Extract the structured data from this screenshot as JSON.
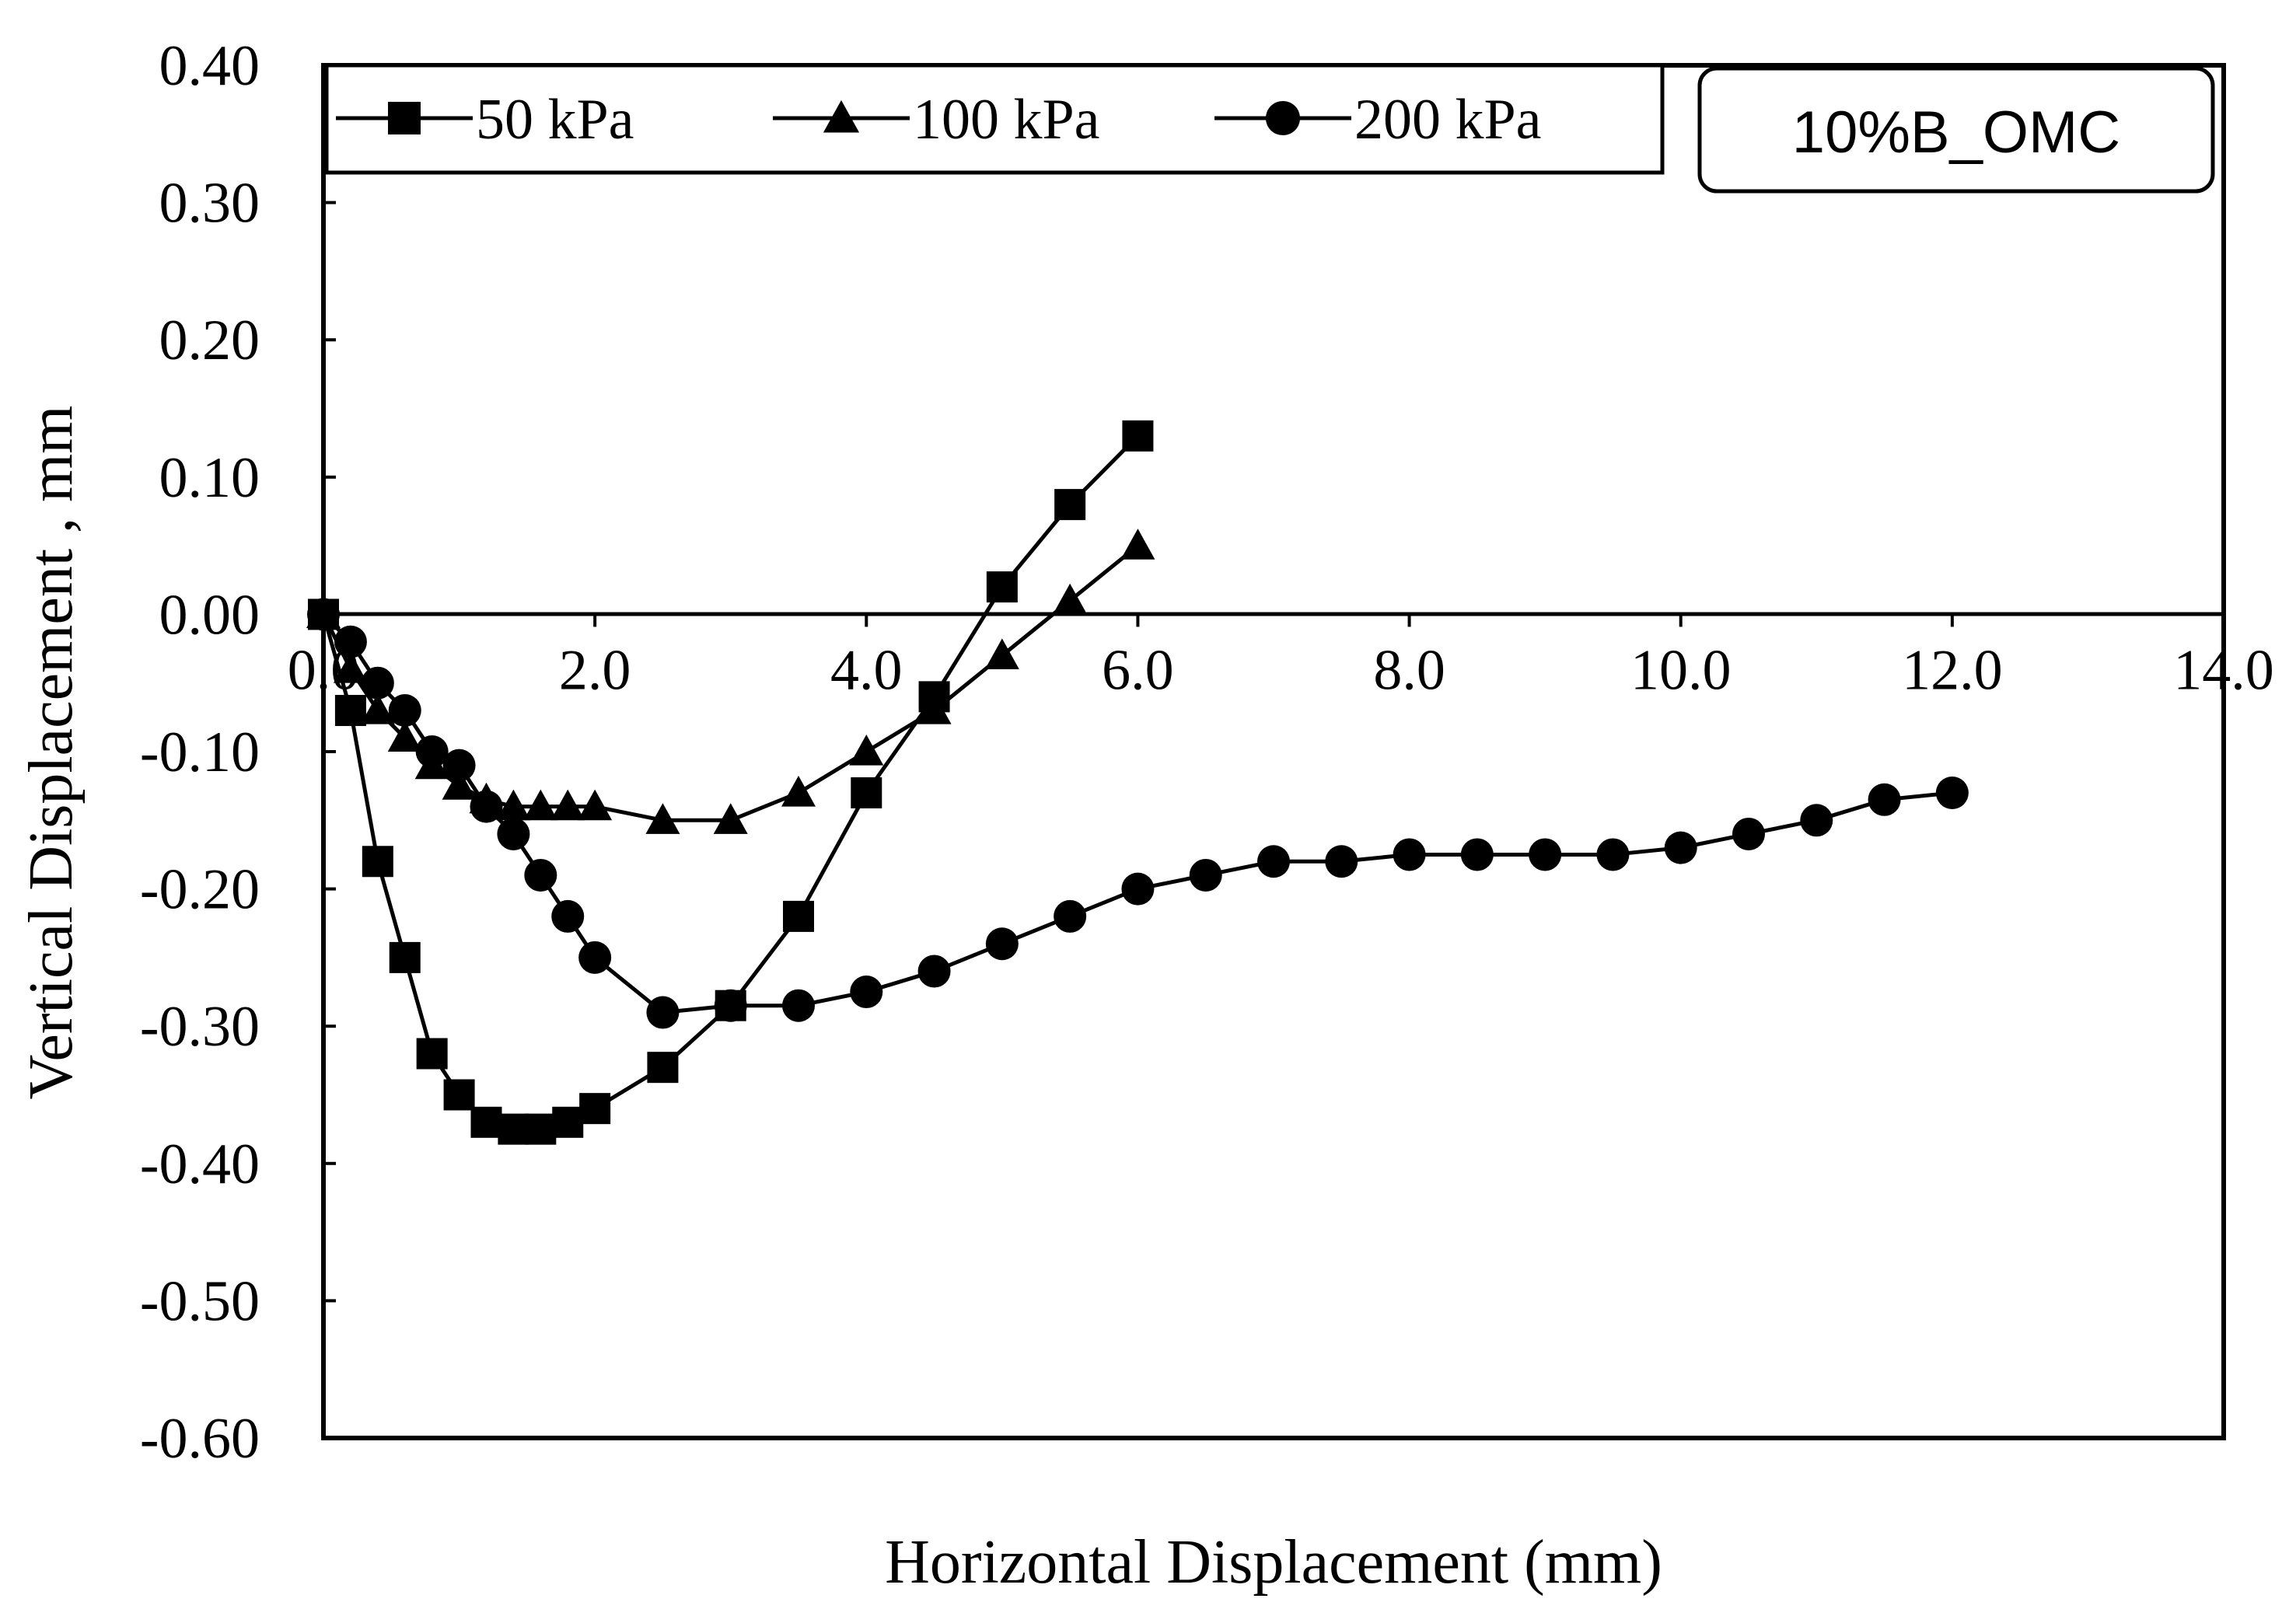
{
  "chart_data": {
    "type": "line",
    "title": "",
    "xlabel": "Horizontal Displacement (mm)",
    "ylabel": "Vertical Displacement , mm",
    "xlim": [
      0,
      14
    ],
    "ylim": [
      -0.6,
      0.4
    ],
    "x_ticks": [
      0,
      2,
      4,
      6,
      8,
      10,
      12,
      14
    ],
    "x_tick_labels": [
      "0.0",
      "2.0",
      "4.0",
      "6.0",
      "8.0",
      "10.0",
      "12.0",
      "14.0"
    ],
    "y_ticks": [
      0.4,
      0.3,
      0.2,
      0.1,
      0.0,
      -0.1,
      -0.2,
      -0.3,
      -0.4,
      -0.5,
      -0.6
    ],
    "y_tick_labels": [
      "0.40",
      "0.30",
      "0.20",
      "0.10",
      "0.00",
      "-0.10",
      "-0.20",
      "-0.30",
      "-0.40",
      "-0.50",
      "-0.60"
    ],
    "grid": false,
    "legend_position": "top",
    "annotation": "10%B_OMC",
    "series": [
      {
        "name": "50 kPa",
        "marker": "square",
        "x": [
          0,
          0.2,
          0.4,
          0.6,
          0.8,
          1.0,
          1.2,
          1.4,
          1.6,
          1.8,
          2.0,
          2.5,
          3.0,
          3.5,
          4.0,
          4.5,
          5.0,
          5.5,
          6.0
        ],
        "y": [
          0.0,
          -0.07,
          -0.18,
          -0.25,
          -0.32,
          -0.35,
          -0.37,
          -0.375,
          -0.375,
          -0.37,
          -0.36,
          -0.33,
          -0.285,
          -0.22,
          -0.13,
          -0.06,
          0.02,
          0.08,
          0.13
        ]
      },
      {
        "name": "100 kPa",
        "marker": "triangle",
        "x": [
          0,
          0.2,
          0.4,
          0.6,
          0.8,
          1.0,
          1.2,
          1.4,
          1.6,
          1.8,
          2.0,
          2.5,
          3.0,
          3.5,
          4.0,
          4.5,
          5.0,
          5.5,
          6.0
        ],
        "y": [
          0.0,
          -0.04,
          -0.07,
          -0.09,
          -0.11,
          -0.125,
          -0.135,
          -0.14,
          -0.14,
          -0.14,
          -0.14,
          -0.15,
          -0.15,
          -0.13,
          -0.1,
          -0.07,
          -0.03,
          0.01,
          0.05
        ]
      },
      {
        "name": "200 kPa",
        "marker": "circle",
        "x": [
          0,
          0.2,
          0.4,
          0.6,
          0.8,
          1.0,
          1.2,
          1.4,
          1.6,
          1.8,
          2.0,
          2.5,
          3.0,
          3.5,
          4.0,
          4.5,
          5.0,
          5.5,
          6.0,
          6.5,
          7.0,
          7.5,
          8.0,
          8.5,
          9.0,
          9.5,
          10.0,
          10.5,
          11.0,
          11.5,
          12.0
        ],
        "y": [
          0.0,
          -0.02,
          -0.05,
          -0.07,
          -0.1,
          -0.11,
          -0.14,
          -0.16,
          -0.19,
          -0.22,
          -0.25,
          -0.29,
          -0.285,
          -0.285,
          -0.275,
          -0.26,
          -0.24,
          -0.22,
          -0.2,
          -0.19,
          -0.18,
          -0.18,
          -0.175,
          -0.175,
          -0.175,
          -0.175,
          -0.17,
          -0.16,
          -0.15,
          -0.135,
          -0.13
        ]
      }
    ]
  }
}
